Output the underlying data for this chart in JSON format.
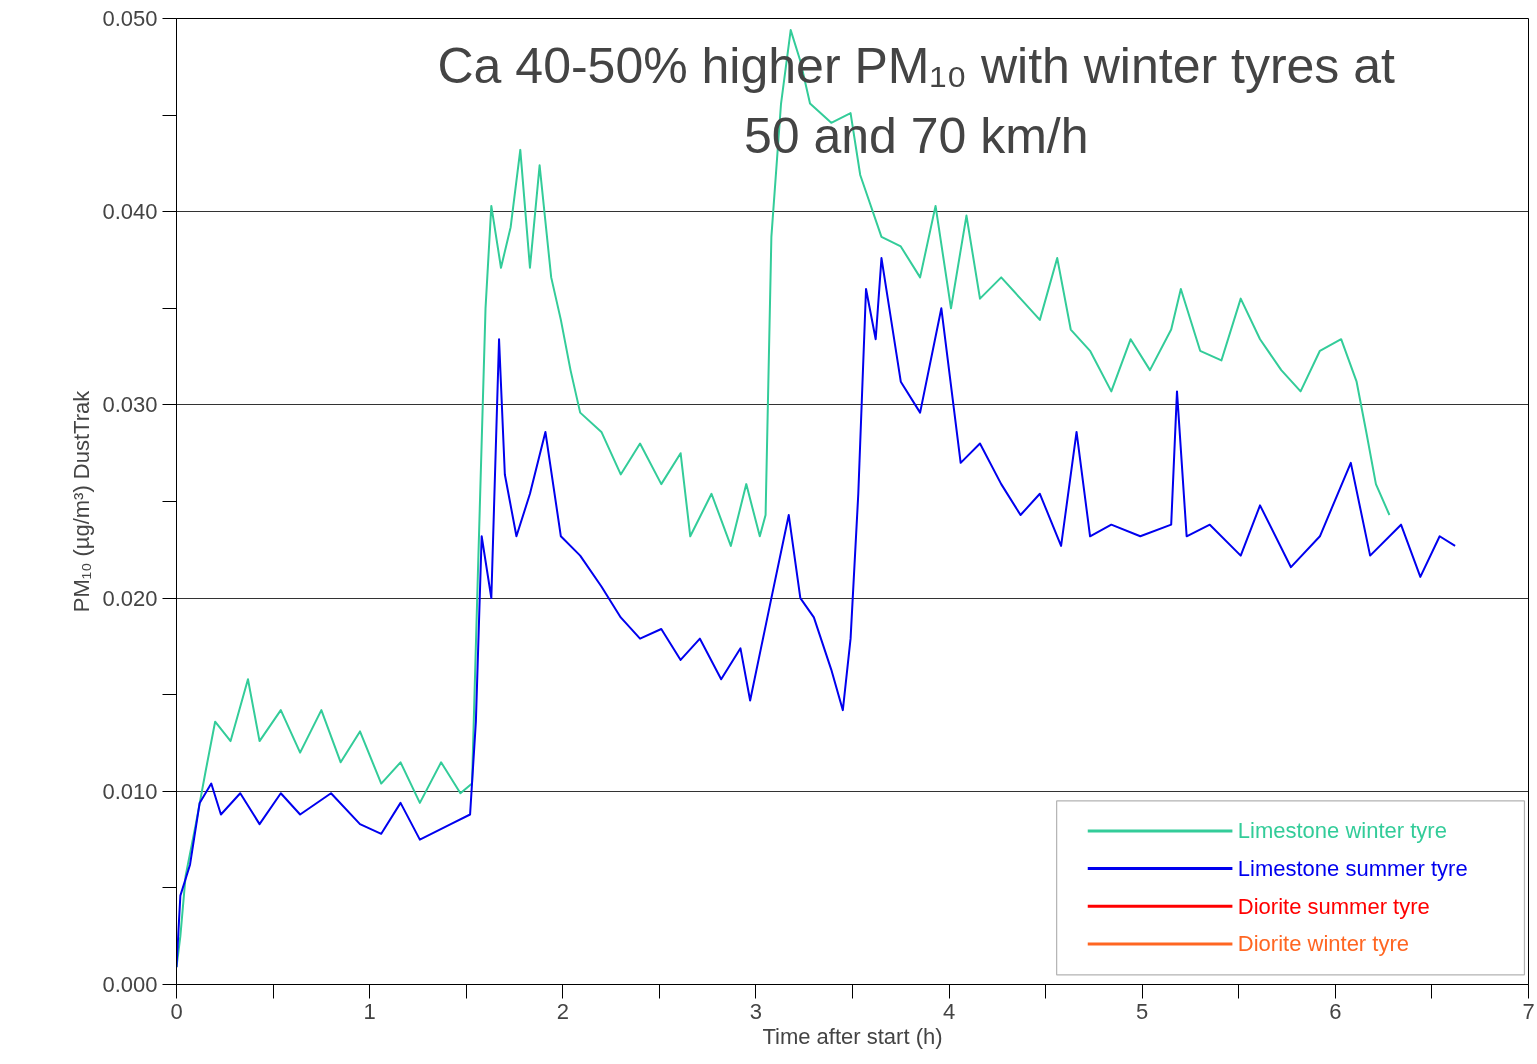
{
  "chart_data": {
    "type": "line",
    "title": "Ca 40-50% higher PM₁₀ with winter tyres at\n50 and 70 km/h",
    "xlabel": "Time after start (h)",
    "ylabel": "PM₁₀ (µg/m³) DustTrak",
    "xlim": [
      0,
      7
    ],
    "ylim": [
      0,
      0.05
    ],
    "xticks": [
      0,
      {
        "value": 0.5,
        "label": null
      },
      1,
      {
        "value": 1.5,
        "label": null
      },
      2,
      {
        "value": 2.5,
        "label": null
      },
      3,
      {
        "value": 3.5,
        "label": null
      },
      4,
      {
        "value": 4.5,
        "label": null
      },
      5,
      {
        "value": 5.5,
        "label": null
      },
      6,
      {
        "value": 6.5,
        "label": null
      },
      7
    ],
    "yticks": [
      {
        "value": 0,
        "label": "0.000"
      },
      {
        "value": 0.005,
        "label": null
      },
      {
        "value": 0.01,
        "label": "0.010"
      },
      {
        "value": 0.015,
        "label": null
      },
      {
        "value": 0.02,
        "label": "0.020"
      },
      {
        "value": 0.025,
        "label": null
      },
      {
        "value": 0.03,
        "label": "0.030"
      },
      {
        "value": 0.035,
        "label": null
      },
      {
        "value": 0.04,
        "label": "0.040"
      },
      {
        "value": 0.045,
        "label": null
      },
      {
        "value": 0.05,
        "label": "0.050"
      }
    ],
    "grid": "y",
    "legend": "bottom right",
    "marker": "none",
    "line_style": "solid",
    "series": [
      {
        "name": "Limestone winter tyre",
        "color": "#33cc99",
        "x": [
          0,
          0.02,
          0.047,
          0.1,
          0.15,
          0.2,
          0.28,
          0.37,
          0.43,
          0.54,
          0.64,
          0.75,
          0.85,
          0.95,
          1.06,
          1.16,
          1.26,
          1.37,
          1.47,
          1.53,
          1.56,
          1.6,
          1.63,
          1.68,
          1.73,
          1.78,
          1.83,
          1.88,
          1.94,
          1.99,
          2.04,
          2.09,
          2.2,
          2.3,
          2.4,
          2.51,
          2.61,
          2.66,
          2.77,
          2.87,
          2.95,
          3.02,
          3.05,
          3.08,
          3.13,
          3.18,
          3.23,
          3.28,
          3.39,
          3.49,
          3.54,
          3.65,
          3.75,
          3.85,
          3.93,
          4.01,
          4.09,
          4.16,
          4.27,
          4.37,
          4.47,
          4.56,
          4.63,
          4.73,
          4.84,
          4.94,
          5.04,
          5.15,
          5.2,
          5.3,
          5.41,
          5.51,
          5.61,
          5.72,
          5.82,
          5.92,
          6.03,
          6.11,
          6.16,
          6.21,
          6.28
        ],
        "values": [
          0.0009,
          0.0025,
          0.0056,
          0.0083,
          0.011,
          0.0136,
          0.0126,
          0.0158,
          0.0126,
          0.0142,
          0.012,
          0.0142,
          0.0115,
          0.0131,
          0.0104,
          0.0115,
          0.0094,
          0.0115,
          0.0099,
          0.0104,
          0.0211,
          0.035,
          0.0403,
          0.0371,
          0.0392,
          0.0432,
          0.0371,
          0.0424,
          0.0366,
          0.0344,
          0.0318,
          0.0296,
          0.0286,
          0.0264,
          0.028,
          0.0259,
          0.0275,
          0.0232,
          0.0254,
          0.0227,
          0.0259,
          0.0232,
          0.0243,
          0.0387,
          0.0456,
          0.0494,
          0.0478,
          0.0456,
          0.0446,
          0.0451,
          0.0419,
          0.0387,
          0.0382,
          0.0366,
          0.0403,
          0.035,
          0.0398,
          0.0355,
          0.0366,
          0.0355,
          0.0344,
          0.0376,
          0.0339,
          0.0328,
          0.0307,
          0.0334,
          0.0318,
          0.0339,
          0.036,
          0.0328,
          0.0323,
          0.0355,
          0.0334,
          0.0318,
          0.0307,
          0.0328,
          0.0334,
          0.0312,
          0.0286,
          0.0259,
          0.0243
        ]
      },
      {
        "name": "Limestone summer tyre",
        "color": "#0000ee",
        "x": [
          0,
          0.02,
          0.07,
          0.12,
          0.18,
          0.23,
          0.33,
          0.43,
          0.54,
          0.64,
          0.8,
          0.95,
          1.06,
          1.16,
          1.26,
          1.42,
          1.52,
          1.55,
          1.58,
          1.63,
          1.67,
          1.7,
          1.76,
          1.83,
          1.91,
          1.99,
          2.09,
          2.2,
          2.3,
          2.4,
          2.51,
          2.61,
          2.71,
          2.82,
          2.92,
          2.97,
          3.08,
          3.17,
          3.23,
          3.3,
          3.39,
          3.45,
          3.49,
          3.53,
          3.57,
          3.62,
          3.65,
          3.75,
          3.85,
          3.96,
          4.06,
          4.16,
          4.27,
          4.37,
          4.47,
          4.58,
          4.66,
          4.73,
          4.84,
          4.99,
          5.15,
          5.18,
          5.23,
          5.35,
          5.51,
          5.61,
          5.77,
          5.92,
          6.08,
          6.18,
          6.34,
          6.44,
          6.54,
          6.62
        ],
        "values": [
          0.0009,
          0.0046,
          0.0062,
          0.0094,
          0.0104,
          0.0088,
          0.0099,
          0.0083,
          0.0099,
          0.0088,
          0.0099,
          0.0083,
          0.0078,
          0.0094,
          0.0075,
          0.0083,
          0.0088,
          0.0136,
          0.0232,
          0.02,
          0.0334,
          0.0264,
          0.0232,
          0.0254,
          0.0286,
          0.0232,
          0.0222,
          0.0206,
          0.019,
          0.0179,
          0.0184,
          0.0168,
          0.0179,
          0.0158,
          0.0174,
          0.0147,
          0.02,
          0.0243,
          0.02,
          0.019,
          0.0163,
          0.0142,
          0.0179,
          0.0254,
          0.036,
          0.0334,
          0.0376,
          0.0312,
          0.0296,
          0.035,
          0.027,
          0.028,
          0.0259,
          0.0243,
          0.0254,
          0.0227,
          0.0286,
          0.0232,
          0.0238,
          0.0232,
          0.0238,
          0.0307,
          0.0232,
          0.0238,
          0.0222,
          0.0248,
          0.0216,
          0.0232,
          0.027,
          0.0222,
          0.0238,
          0.0211,
          0.0232,
          0.0227
        ]
      },
      {
        "name": "Diorite summer tyre",
        "color": "#ff0000"
      },
      {
        "name": "Diorite winter tyre",
        "color": "#ff6622"
      }
    ]
  }
}
